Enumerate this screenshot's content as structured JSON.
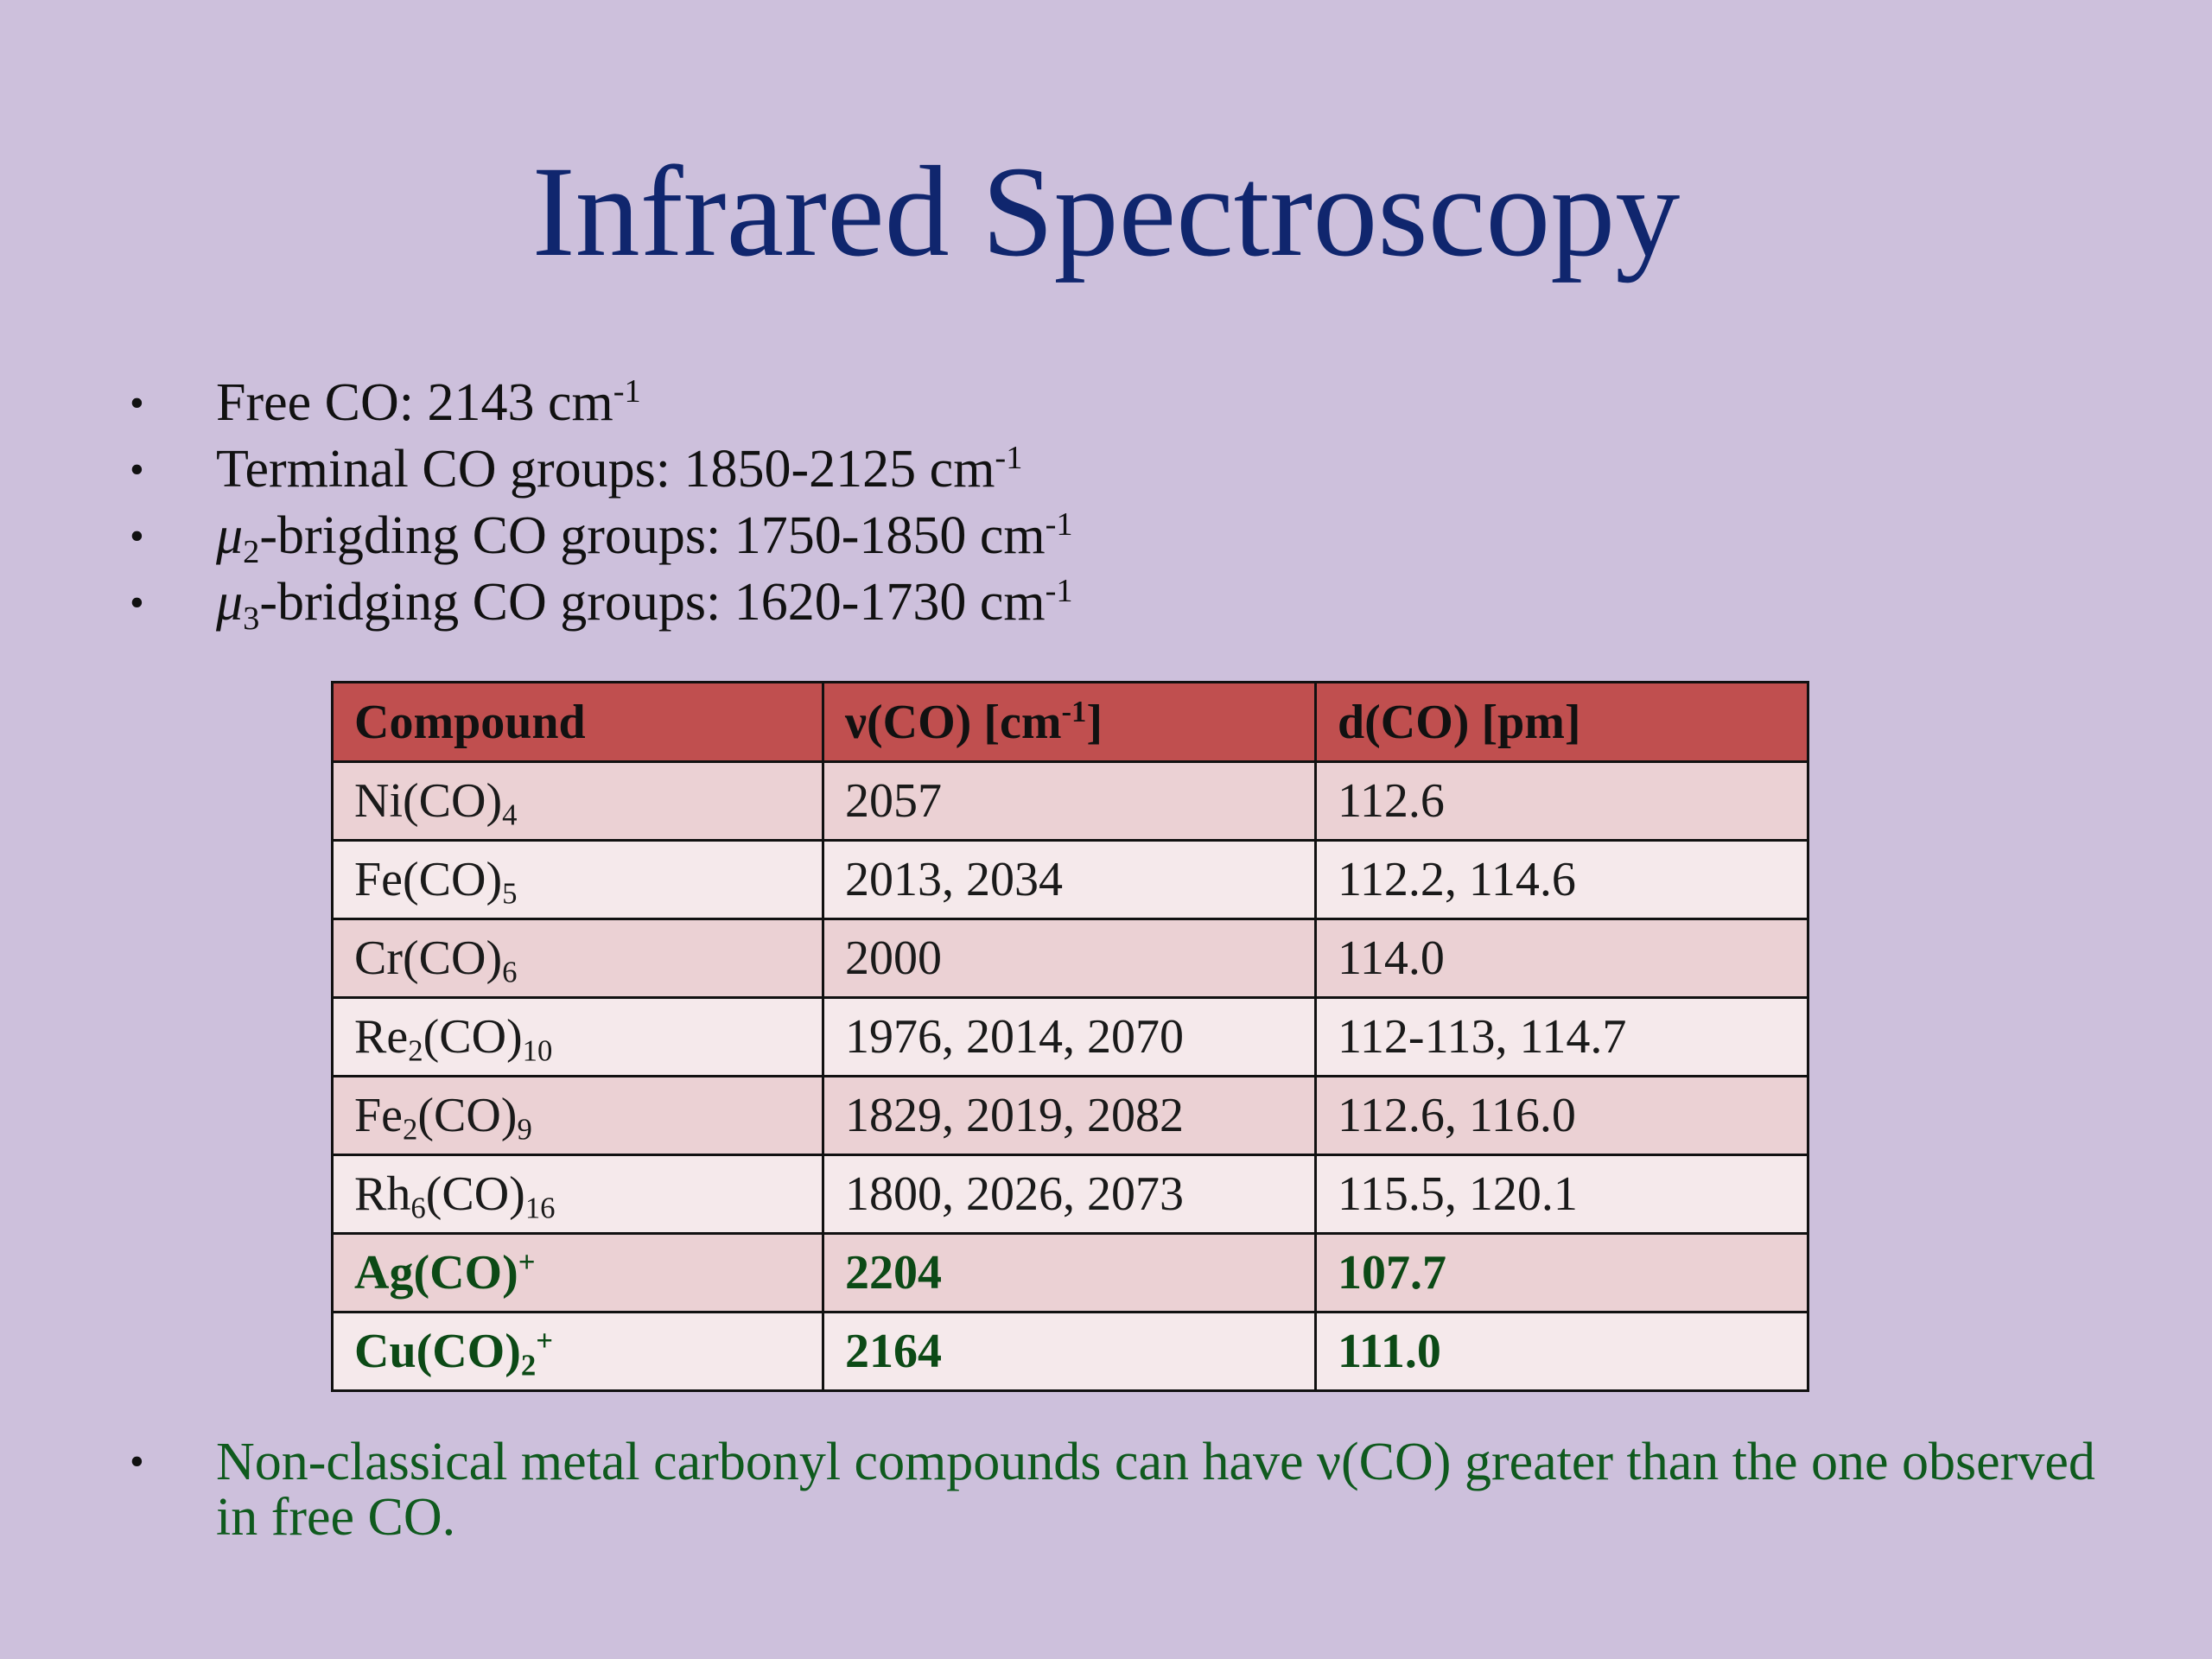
{
  "slide": {
    "title": "Infrared Spectroscopy",
    "bullets": [
      {
        "pre": "",
        "sub": "",
        "label": "Free CO: 2143 cm",
        "exp": "-1"
      },
      {
        "pre": "",
        "sub": "",
        "label": "Terminal CO groups: 1850-2125 cm",
        "exp": "-1"
      },
      {
        "pre": "μ",
        "sub": "2",
        "label": "-brigding CO groups: 1750-1850 cm",
        "exp": "-1"
      },
      {
        "pre": "μ",
        "sub": "3",
        "label": "-bridging CO groups: 1620-1730 cm",
        "exp": "-1"
      }
    ],
    "bullet_symbol": "•",
    "table": {
      "headers": {
        "compound": "Compound",
        "nu_prefix": "ν(CO) [cm",
        "nu_exp": "-1",
        "nu_suffix": "]",
        "d": "d(CO) [pm]"
      },
      "rows": [
        {
          "c1": "Ni(CO)",
          "s1": "4",
          "c2": "",
          "s2": "",
          "sup": "",
          "nu": "2057",
          "d": "112.6"
        },
        {
          "c1": "Fe(CO)",
          "s1": "5",
          "c2": "",
          "s2": "",
          "sup": "",
          "nu": "2013, 2034",
          "d": "112.2, 114.6"
        },
        {
          "c1": "Cr(CO)",
          "s1": "6",
          "c2": "",
          "s2": "",
          "sup": "",
          "nu": "2000",
          "d": "114.0"
        },
        {
          "c1": "Re",
          "s1": "2",
          "c2": "(CO)",
          "s2": "10",
          "sup": "",
          "nu": "1976, 2014, 2070",
          "d": "112-113, 114.7"
        },
        {
          "c1": "Fe",
          "s1": "2",
          "c2": "(CO)",
          "s2": "9",
          "sup": "",
          "nu": "1829, 2019, 2082",
          "d": "112.6, 116.0"
        },
        {
          "c1": "Rh",
          "s1": "6",
          "c2": "(CO)",
          "s2": "16",
          "sup": "",
          "nu": "1800, 2026, 2073",
          "d": "115.5, 120.1"
        },
        {
          "c1": "Ag(CO)",
          "s1": "",
          "c2": "",
          "s2": "",
          "sup": "+",
          "nu": "2204",
          "d": "107.7"
        },
        {
          "c1": "Cu(CO)",
          "s1": "2",
          "c2": "",
          "s2": "",
          "sup": "+",
          "nu": "2164",
          "d": "111.0"
        }
      ]
    },
    "note": "Non-classical metal carbonyl compounds can have ν(CO) greater than the one observed in free CO.",
    "colors": {
      "background": "#cdc0dc",
      "title": "#10266e",
      "header": "#c04f4f",
      "row_odd": "#ebd1d4",
      "row_even": "#f5e9eb",
      "highlight_text": "#0c4a16",
      "note_text": "#0f5a1e"
    }
  }
}
